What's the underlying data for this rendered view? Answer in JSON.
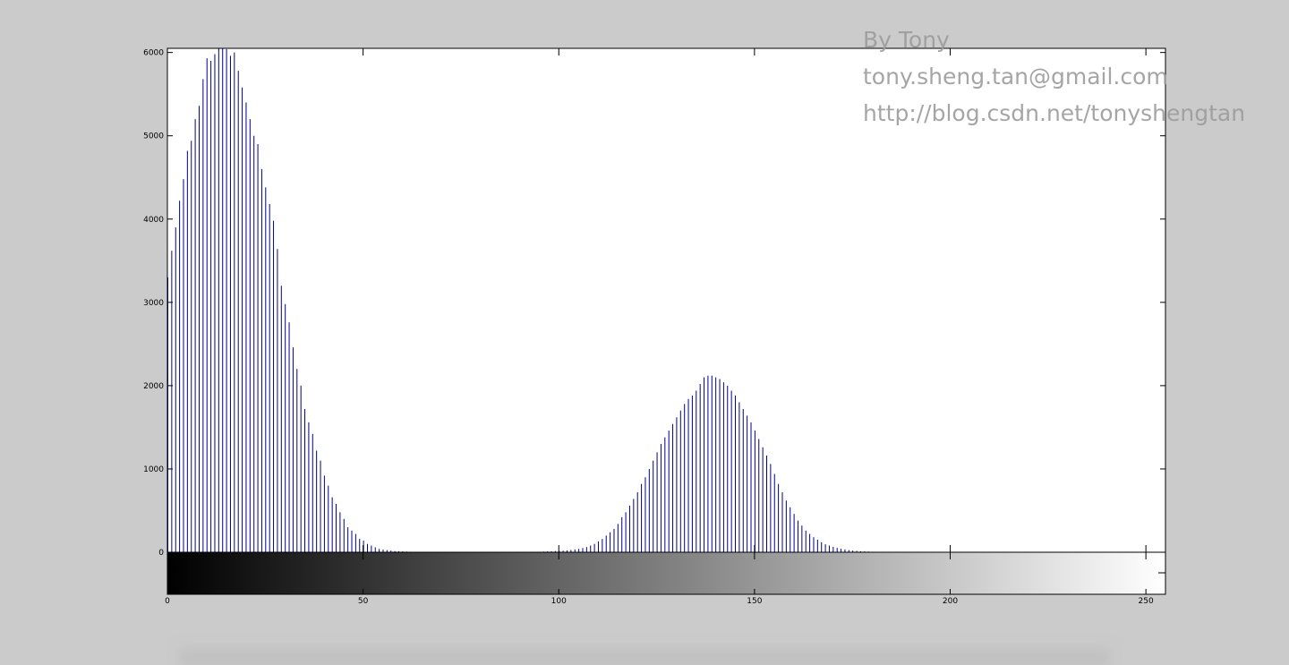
{
  "figure": {
    "background": "#cbcbcb",
    "watermark": {
      "line1": "By Tony",
      "line2": "tony.sheng.tan@gmail.com",
      "line3": "http://blog.csdn.net/tonyshengtan",
      "color": "#9c9c9c"
    }
  },
  "chart_data": {
    "type": "bar",
    "title": "",
    "xlabel": "",
    "ylabel": "",
    "xlim": [
      0,
      255
    ],
    "ylim": [
      0,
      6050
    ],
    "x_ticks": [
      0,
      50,
      100,
      150,
      200,
      250
    ],
    "y_ticks": [
      0,
      1000,
      2000,
      3000,
      4000,
      5000,
      6000
    ],
    "bar_color": "#00008b",
    "colorbar": {
      "type": "grayscale",
      "range": [
        0,
        255
      ]
    },
    "grid": false,
    "series": [
      {
        "peaks": [
          {
            "center": 14.5,
            "height": 6050,
            "width": 11.5
          },
          {
            "center": 143,
            "height": 2120,
            "width": 11
          }
        ],
        "values": [
          3300,
          3620,
          3900,
          4220,
          4480,
          4820,
          4940,
          5200,
          5360,
          5680,
          5930,
          5900,
          5980,
          6050,
          6050,
          6040,
          5960,
          6000,
          5780,
          5580,
          5400,
          5200,
          5000,
          4900,
          4600,
          4380,
          4180,
          3980,
          3640,
          3200,
          2980,
          2760,
          2460,
          2200,
          2000,
          1720,
          1560,
          1420,
          1220,
          1100,
          920,
          800,
          660,
          580,
          480,
          400,
          300,
          260,
          220,
          160,
          140,
          100,
          80,
          60,
          40,
          32,
          26,
          20,
          14,
          12,
          10,
          8,
          6,
          5,
          4,
          3,
          2,
          2,
          1,
          1,
          0,
          0,
          0,
          0,
          0,
          0,
          0,
          0,
          0,
          0,
          0,
          0,
          0,
          0,
          0,
          0,
          0,
          0,
          0,
          1,
          2,
          2,
          3,
          4,
          5,
          6,
          8,
          10,
          12,
          14,
          16,
          18,
          22,
          28,
          34,
          40,
          50,
          62,
          80,
          100,
          130,
          160,
          200,
          240,
          280,
          340,
          420,
          480,
          560,
          640,
          720,
          820,
          900,
          1000,
          1100,
          1200,
          1300,
          1380,
          1460,
          1540,
          1620,
          1700,
          1780,
          1840,
          1880,
          1940,
          2020,
          2100,
          2120,
          2120,
          2100,
          2080,
          2040,
          2000,
          1940,
          1880,
          1800,
          1720,
          1640,
          1560,
          1460,
          1360,
          1260,
          1160,
          1060,
          940,
          820,
          720,
          620,
          540,
          460,
          380,
          320,
          260,
          220,
          180,
          150,
          120,
          96,
          80,
          64,
          52,
          42,
          34,
          26,
          20,
          16,
          12,
          10,
          8,
          6,
          5,
          4,
          3,
          2,
          2,
          1,
          1,
          0,
          0,
          0,
          0,
          0,
          0,
          0,
          0,
          0,
          0,
          0,
          0,
          0,
          0,
          0,
          0,
          0,
          0,
          0,
          0,
          0,
          0,
          0,
          0,
          0,
          0,
          0,
          0,
          0,
          0,
          0,
          0,
          0,
          0,
          0,
          0,
          0,
          0,
          0,
          0,
          0,
          0,
          0,
          0,
          0,
          0,
          0,
          0,
          0,
          0,
          0,
          0,
          0,
          0,
          0,
          0,
          0,
          0,
          0,
          0,
          0,
          0,
          0,
          0,
          0,
          0,
          0,
          0
        ]
      }
    ]
  }
}
